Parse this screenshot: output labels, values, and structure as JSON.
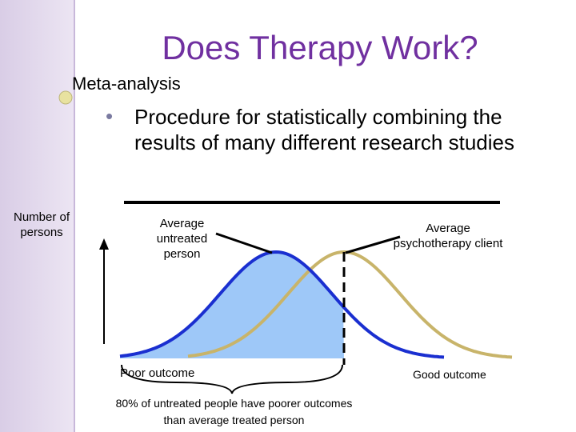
{
  "title": "Does Therapy Work?",
  "bullets": [
    {
      "text": "Meta-analysis",
      "children": [
        "Procedure for statistically combining the results of many different research studies"
      ]
    }
  ],
  "diagram": {
    "y_axis_label": "Number of persons",
    "left_label": "Average untreated person",
    "right_label": "Average psychotherapy client",
    "x_left": "Poor outcome",
    "x_right": "Good outcome",
    "caption": "80% of untreated people have poorer outcomes than average treated person"
  }
}
